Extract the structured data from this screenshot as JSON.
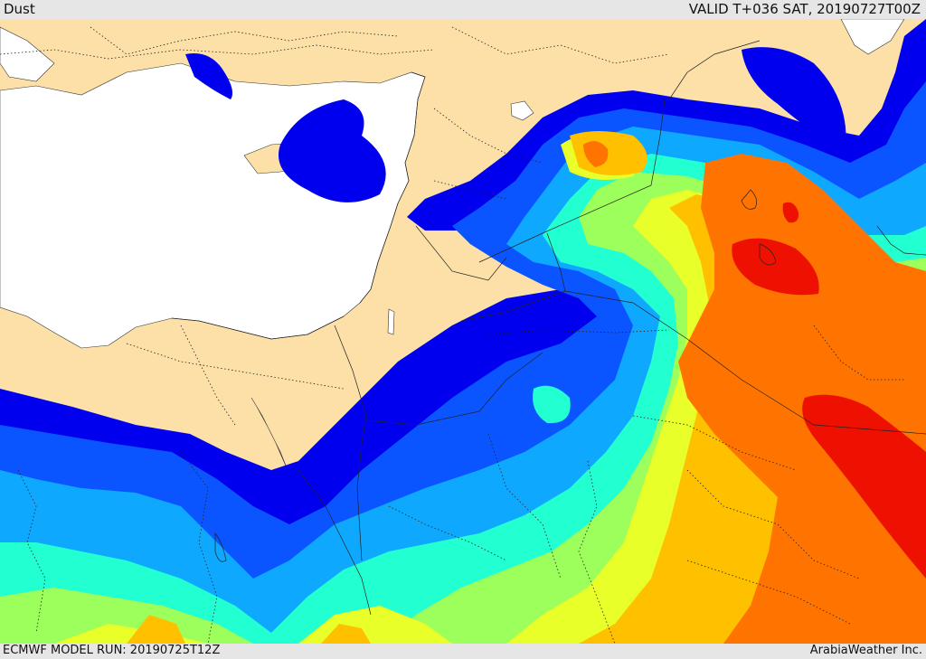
{
  "header": {
    "title": "Dust",
    "valid_time": "VALID T+036 SAT, 20190727T00Z"
  },
  "footer": {
    "model_run": "ECMWF MODEL RUN: 20190725T12Z",
    "credit": "ArabiaWeather Inc."
  },
  "colors": {
    "land": "#fde0a8",
    "sea": "#ffffff",
    "dust_levels": [
      "#0000ee",
      "#0a55ff",
      "#0fa8ff",
      "#22ffd0",
      "#9cff5c",
      "#e8ff2a",
      "#ffc000",
      "#ff7400",
      "#ee1000"
    ],
    "border_line": "#222222"
  }
}
